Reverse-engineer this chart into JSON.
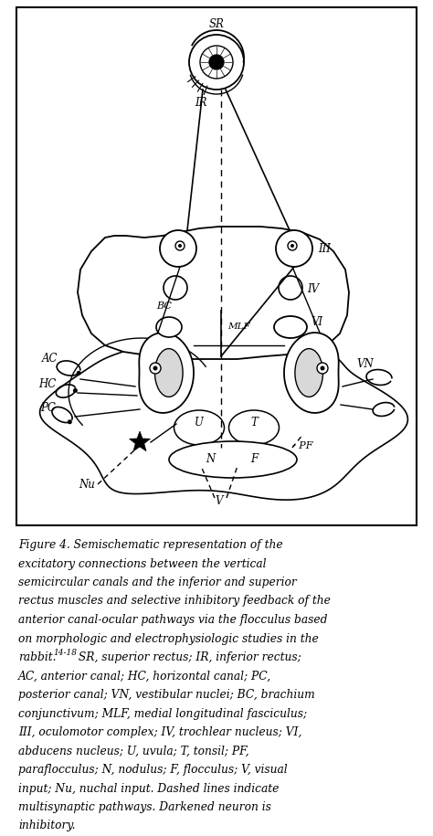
{
  "fig_width": 4.74,
  "fig_height": 9.15,
  "dpi": 100,
  "background_color": "#ffffff",
  "lines": [
    "Figure 4. Semischematic representation of the",
    "excitatory connections between the vertical",
    "semicircular canals and the inferior and superior",
    "rectus muscles and selective inhibitory feedback of the",
    "anterior canal-ocular pathways via the flocculus based",
    "on morphologic and electrophysiologic studies in the",
    "rabbit.14-18 SR, superior rectus; IR, inferior rectus;",
    "AC, anterior canal; HC, horizontal canal; PC,",
    "posterior canal; VN, vestibular nuclei; BC, brachium",
    "conjunctivum; MLF, medial longitudinal fasciculus;",
    "III, oculomotor complex; IV, trochlear nucleus; VI,",
    "abducens nucleus; U, uvula; T, tonsil; PF,",
    "paraflocculus; N, nodulus; F, flocculus; V, visual",
    "input; Nu, nuchal input. Dashed lines indicate",
    "multisynaptic pathways. Darkened neuron is",
    "inhibitory."
  ]
}
